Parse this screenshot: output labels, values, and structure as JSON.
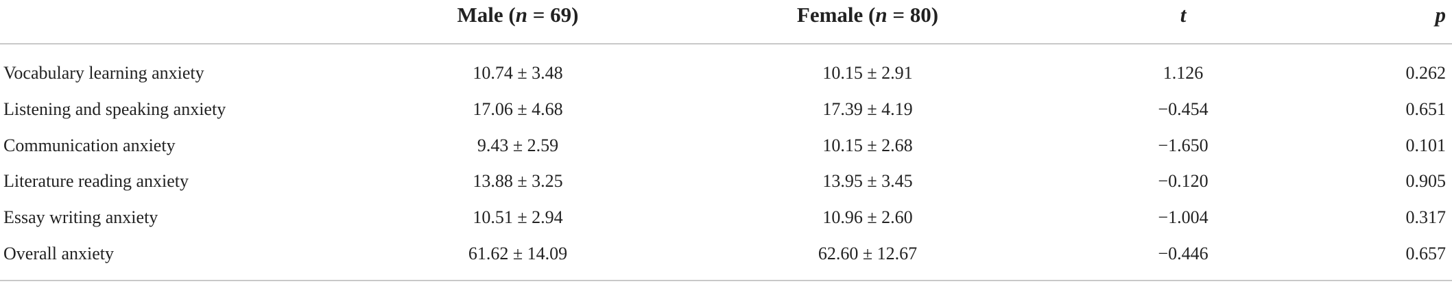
{
  "table": {
    "header": [
      [
        "Male (",
        "n",
        " = 69)"
      ],
      [
        "Female (",
        "n",
        " = 80)"
      ],
      [
        "t"
      ],
      [
        "p"
      ]
    ],
    "rows": [
      [
        "Vocabulary learning anxiety",
        "10.74 ± 3.48",
        "10.15 ± 2.91",
        "1.126",
        "0.262"
      ],
      [
        "Listening and speaking anxiety",
        "17.06 ± 4.68",
        "17.39 ± 4.19",
        "−0.454",
        "0.651"
      ],
      [
        "Communication anxiety",
        "9.43 ± 2.59",
        "10.15 ± 2.68",
        "−1.650",
        "0.101"
      ],
      [
        "Literature reading anxiety",
        "13.88 ± 3.25",
        "13.95 ± 3.45",
        "−0.120",
        "0.905"
      ],
      [
        "Essay writing anxiety",
        "10.51 ± 2.94",
        "10.96 ± 2.60",
        "−1.004",
        "0.317"
      ],
      [
        "Overall anxiety",
        "61.62 ± 14.09",
        "62.60 ± 12.67",
        "−0.446",
        "0.657"
      ]
    ]
  }
}
